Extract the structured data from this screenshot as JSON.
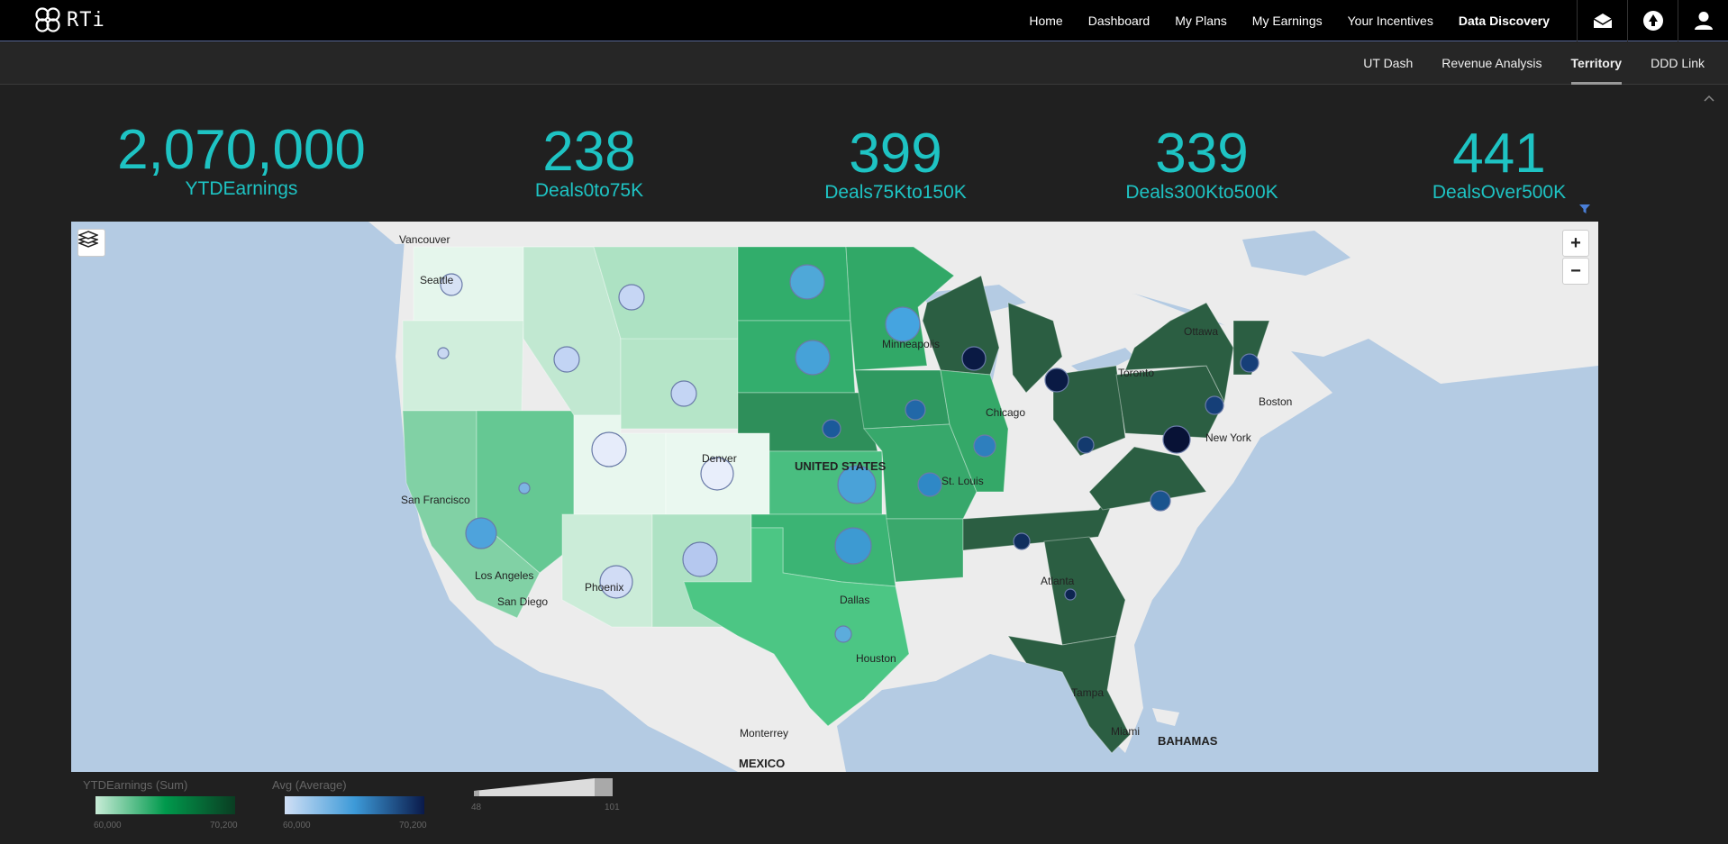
{
  "brand": {
    "name": "RTi",
    "logo_icon": "knot-logo-icon"
  },
  "nav": {
    "links": [
      {
        "label": "Home",
        "active": false
      },
      {
        "label": "Dashboard",
        "active": false
      },
      {
        "label": "My Plans",
        "active": false
      },
      {
        "label": "My Earnings",
        "active": false
      },
      {
        "label": "Your Incentives",
        "active": false
      },
      {
        "label": "Data Discovery",
        "active": true
      }
    ],
    "icons": [
      "mail-icon",
      "notification-icon",
      "user-icon"
    ]
  },
  "subnav": {
    "links": [
      {
        "label": "UT Dash",
        "active": false
      },
      {
        "label": "Revenue Analysis",
        "active": false
      },
      {
        "label": "Territory",
        "active": true
      },
      {
        "label": "DDD Link",
        "active": false
      }
    ]
  },
  "kpis": [
    {
      "value": "2,070,000",
      "label": "YTDEarnings"
    },
    {
      "value": "238",
      "label": "Deals0to75K"
    },
    {
      "value": "399",
      "label": "Deals75Kto150K"
    },
    {
      "value": "339",
      "label": "Deals300Kto500K"
    },
    {
      "value": "441",
      "label": "DealsOver500K"
    }
  ],
  "map": {
    "zoom_in": "+",
    "zoom_out": "−",
    "country_label": "UNITED STATES",
    "other_labels": [
      "MEXICO",
      "BAHAMAS"
    ],
    "cities": [
      "Vancouver",
      "Seattle",
      "Minneapolis",
      "Ottawa",
      "Toronto",
      "Chicago",
      "Boston",
      "New York",
      "Denver",
      "St. Louis",
      "San Francisco",
      "Los Angeles",
      "San Diego",
      "Phoenix",
      "Atlanta",
      "Dallas",
      "Houston",
      "Tampa",
      "Miami",
      "Monterrey"
    ],
    "colors": {
      "water": "#b4cbe3",
      "land": "#ececec"
    }
  },
  "legend": {
    "fill": {
      "title": "YTDEarnings (Sum)",
      "min": "60,000",
      "max": "70,200",
      "colors": [
        "#c8ecd7",
        "#00994c",
        "#0a3d22"
      ]
    },
    "bubble_color": {
      "title": "Avg (Average)",
      "min": "60,000",
      "max": "70,200",
      "colors": [
        "#d0dff5",
        "#3d9ad8",
        "#0a1a4a"
      ]
    },
    "bubble_size": {
      "min": "48",
      "max": "101"
    }
  }
}
